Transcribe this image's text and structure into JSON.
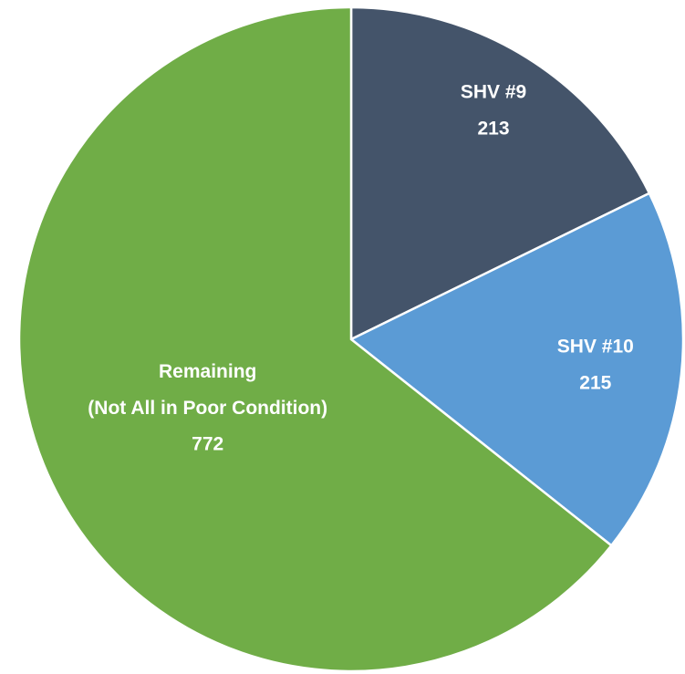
{
  "chart_data": {
    "type": "pie",
    "categories": [
      "SHV #9",
      "SHV #10",
      "Remaining\n(Not All in Poor Condition)"
    ],
    "values": [
      213,
      215,
      772
    ],
    "colors": [
      "#44546a",
      "#5b9bd5",
      "#70ad47"
    ]
  }
}
